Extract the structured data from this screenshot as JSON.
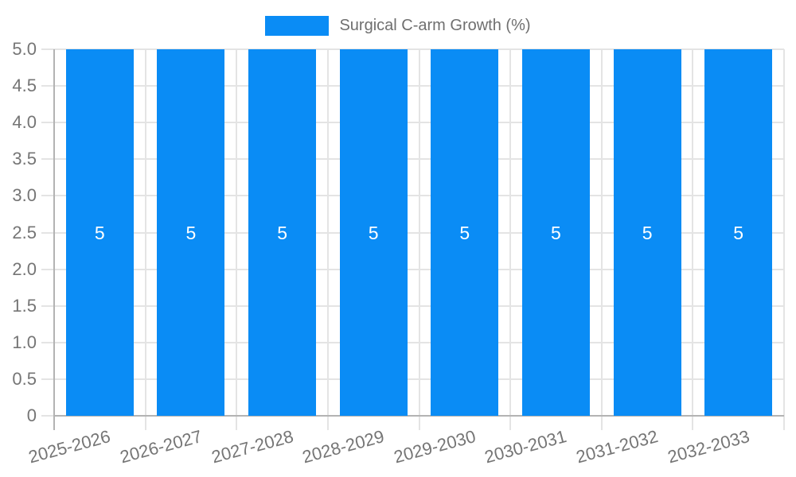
{
  "legend": {
    "label": "Surgical C-arm Growth (%)"
  },
  "chart_data": {
    "type": "bar",
    "title": "Surgical C-arm Growth (%)",
    "xlabel": "",
    "ylabel": "",
    "categories": [
      "2025-2026",
      "2026-2027",
      "2027-2028",
      "2028-2029",
      "2029-2030",
      "2030-2031",
      "2031-2032",
      "2032-2033"
    ],
    "values": [
      5,
      5,
      5,
      5,
      5,
      5,
      5,
      5
    ],
    "value_labels": [
      "5",
      "5",
      "5",
      "5",
      "5",
      "5",
      "5",
      "5"
    ],
    "ylim": [
      0,
      5
    ],
    "ytick_step": 0.5,
    "yticks": [
      "5.0",
      "4.5",
      "4.0",
      "3.5",
      "3.0",
      "2.5",
      "2.0",
      "1.5",
      "1.0",
      "0.5",
      "0"
    ],
    "grid": true,
    "legend_position": "top-center",
    "colors": {
      "bar": "#0a8cf5",
      "grid": "#e4e4e4",
      "axis": "#b3b3b3",
      "tick_text": "#757575",
      "legend_text": "#6f6f6f",
      "value_label": "#ffffff",
      "background": "#ffffff"
    }
  }
}
